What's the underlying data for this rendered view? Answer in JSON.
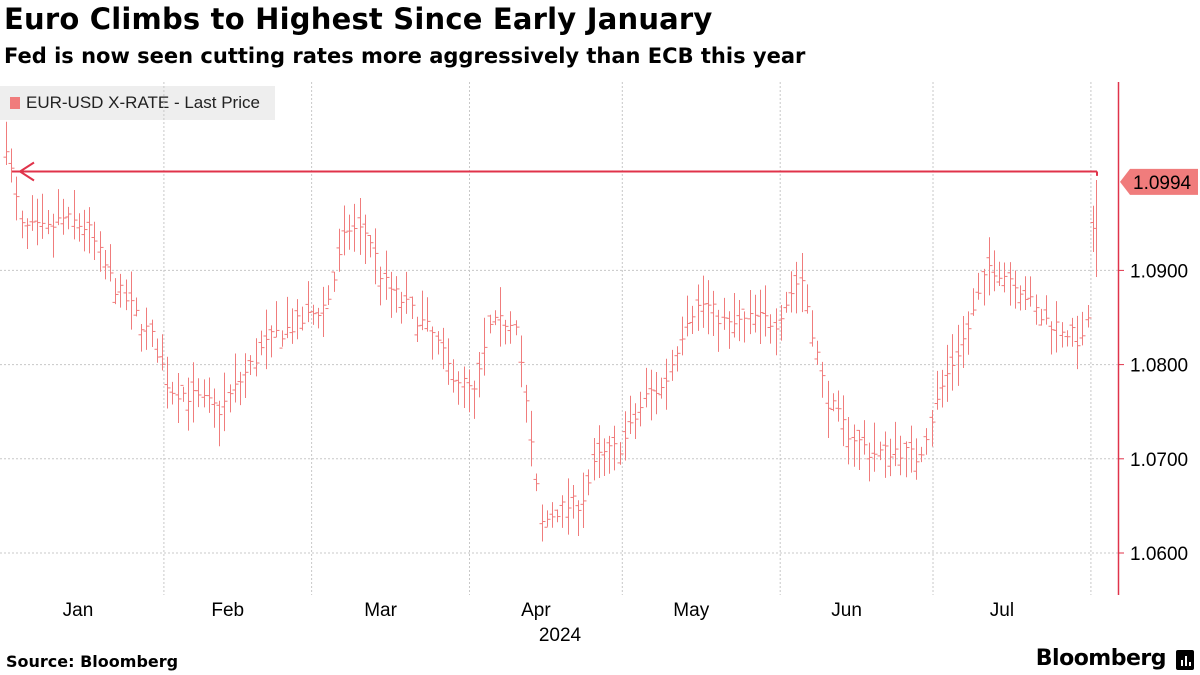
{
  "header": {
    "title": "Euro Climbs to Highest Since Early January",
    "subtitle": "Fed is now seen cutting rates more aggressively than ECB this year"
  },
  "footer": {
    "source": "Source: Bloomberg",
    "brand": "Bloomberg"
  },
  "colors": {
    "series": "#f07c7c",
    "reference_line": "#e0334a",
    "grid": "#c8c8c8",
    "legend_bg": "#eeeeee",
    "axis": "#e0334a"
  },
  "chart_data": {
    "type": "line",
    "style": "ohlc-bars",
    "title": "Euro Climbs to Highest Since Early January",
    "subtitle": "Fed is now seen cutting rates more aggressively than ECB this year",
    "legend": [
      "EUR-USD X-RATE - Last Price"
    ],
    "legend_position": "top-left",
    "x_tick_labels": [
      "Jan",
      "Feb",
      "Mar",
      "Apr",
      "May",
      "Jun",
      "Jul"
    ],
    "x_year_label": "2024",
    "y_tick_labels": [
      "1.0600",
      "1.0700",
      "1.0800",
      "1.0900"
    ],
    "ylim": [
      1.055,
      1.11
    ],
    "last_price_label": "1.0994",
    "last_price": 1.0994,
    "reference_level": 1.1005,
    "grid": true,
    "y_axis_position": "right",
    "series": [
      {
        "name": "EUR-USD X-RATE - Last Price",
        "x": [
          "2024-01-01",
          "2024-01-04",
          "2024-01-09",
          "2024-01-12",
          "2024-01-17",
          "2024-01-22",
          "2024-01-25",
          "2024-01-30",
          "2024-02-02",
          "2024-02-07",
          "2024-02-12",
          "2024-02-15",
          "2024-02-20",
          "2024-02-23",
          "2024-02-28",
          "2024-03-04",
          "2024-03-08",
          "2024-03-12",
          "2024-03-15",
          "2024-03-20",
          "2024-03-25",
          "2024-03-28",
          "2024-04-02",
          "2024-04-05",
          "2024-04-10",
          "2024-04-15",
          "2024-04-18",
          "2024-04-23",
          "2024-04-26",
          "2024-05-01",
          "2024-05-06",
          "2024-05-09",
          "2024-05-14",
          "2024-05-17",
          "2024-05-22",
          "2024-05-27",
          "2024-05-31",
          "2024-06-05",
          "2024-06-10",
          "2024-06-14",
          "2024-06-19",
          "2024-06-24",
          "2024-06-28",
          "2024-07-03",
          "2024-07-08",
          "2024-07-12",
          "2024-07-17",
          "2024-07-22",
          "2024-07-26",
          "2024-07-31",
          "2024-08-02"
        ],
        "close": [
          1.1035,
          1.0945,
          1.0942,
          1.0955,
          1.0945,
          1.0885,
          1.0865,
          1.0825,
          1.0775,
          1.0765,
          1.0752,
          1.0775,
          1.0815,
          1.0832,
          1.0845,
          1.0865,
          1.0945,
          1.094,
          1.0888,
          1.086,
          1.083,
          1.0795,
          1.0768,
          1.084,
          1.085,
          1.063,
          1.0645,
          1.0655,
          1.07,
          1.0715,
          1.077,
          1.0775,
          1.0855,
          1.0865,
          1.084,
          1.085,
          1.0845,
          1.0895,
          1.0765,
          1.073,
          1.0705,
          1.071,
          1.07,
          1.078,
          1.084,
          1.0905,
          1.089,
          1.085,
          1.084,
          1.082,
          1.0994
        ]
      }
    ]
  }
}
